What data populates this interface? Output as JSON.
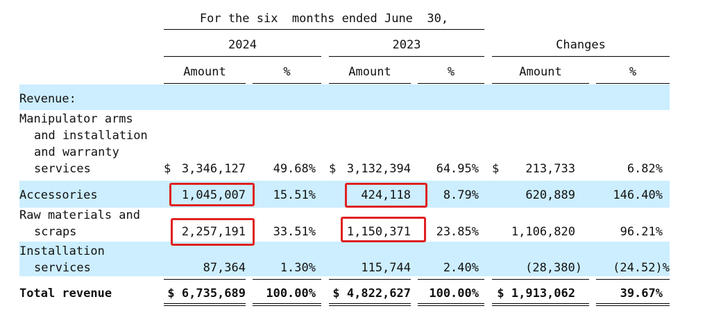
{
  "header": {
    "period": "For the six  months ended June  30,",
    "years": [
      "2024",
      "2023"
    ],
    "changes": "Changes",
    "col_amount": "Amount",
    "col_pct": "%"
  },
  "sections": {
    "revenue_label": "Revenue:"
  },
  "rows": [
    {
      "label_lines": [
        "Manipulator arms",
        "and installation",
        "and warranty",
        "services"
      ],
      "dollar_2024": "$",
      "amt_2024": "3,346,127",
      "pct_2024": "49.68%",
      "dollar_2023": "$",
      "amt_2023": "3,132,394",
      "pct_2023": "64.95%",
      "dollar_chg": "$",
      "amt_chg": "213,733",
      "pct_chg": "6.82%"
    },
    {
      "label_lines": [
        "Accessories"
      ],
      "amt_2024": "1,045,007",
      "pct_2024": "15.51%",
      "amt_2023": "424,118",
      "pct_2023": "8.79%",
      "amt_chg": "620,889",
      "pct_chg": "146.40%"
    },
    {
      "label_lines": [
        "Raw materials and",
        "scraps"
      ],
      "amt_2024": "2,257,191",
      "pct_2024": "33.51%",
      "amt_2023": "1,150,371",
      "pct_2023": "23.85%",
      "amt_chg": "1,106,820",
      "pct_chg": "96.21%"
    },
    {
      "label_lines": [
        "Installation",
        "services"
      ],
      "amt_2024": "87,364",
      "pct_2024": "1.30%",
      "amt_2023": "115,744",
      "pct_2023": "2.40%",
      "amt_chg": "(28,380)",
      "pct_chg": "(24.52)%"
    }
  ],
  "total": {
    "label": "Total revenue",
    "amt_2024": "$ 6,735,689",
    "pct_2024": "100.00%",
    "amt_2023": "$ 4,822,627",
    "pct_2023": "100.00%",
    "amt_chg": "$ 1,913,062",
    "pct_chg": "39.67%"
  },
  "colors": {
    "band": "#cceeff",
    "highlight": "#e02020"
  }
}
